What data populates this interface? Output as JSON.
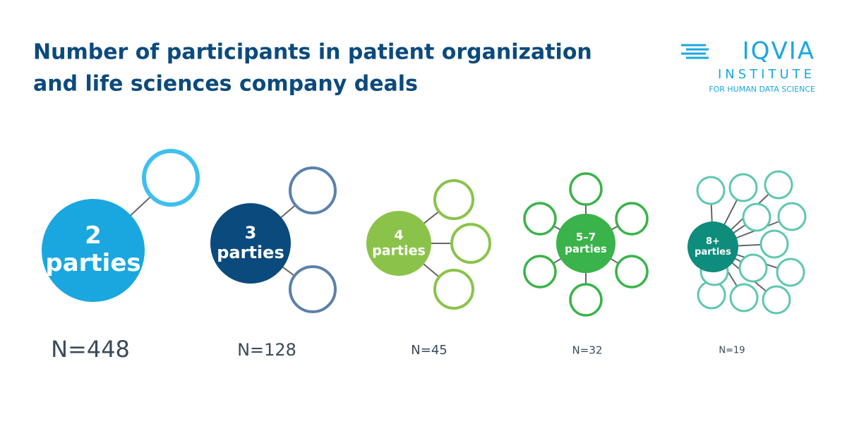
{
  "header": {
    "title_lines": [
      "Number of participants in patient organization",
      "and life sciences company deals"
    ]
  },
  "logo": {
    "name": "IQVIA",
    "line1": "INSTITUTE",
    "line2": "FOR HUMAN DATA SCIENCE"
  },
  "groups": [
    {
      "label": [
        "2",
        "parties"
      ],
      "count": "N=448"
    },
    {
      "label": [
        "3",
        "parties"
      ],
      "count": "N=128"
    },
    {
      "label": [
        "4",
        "parties"
      ],
      "count": "N=45"
    },
    {
      "label": [
        "5–7",
        "parties"
      ],
      "count": "N=32"
    },
    {
      "label": [
        "8+",
        "parties"
      ],
      "count": "N=19"
    }
  ]
}
